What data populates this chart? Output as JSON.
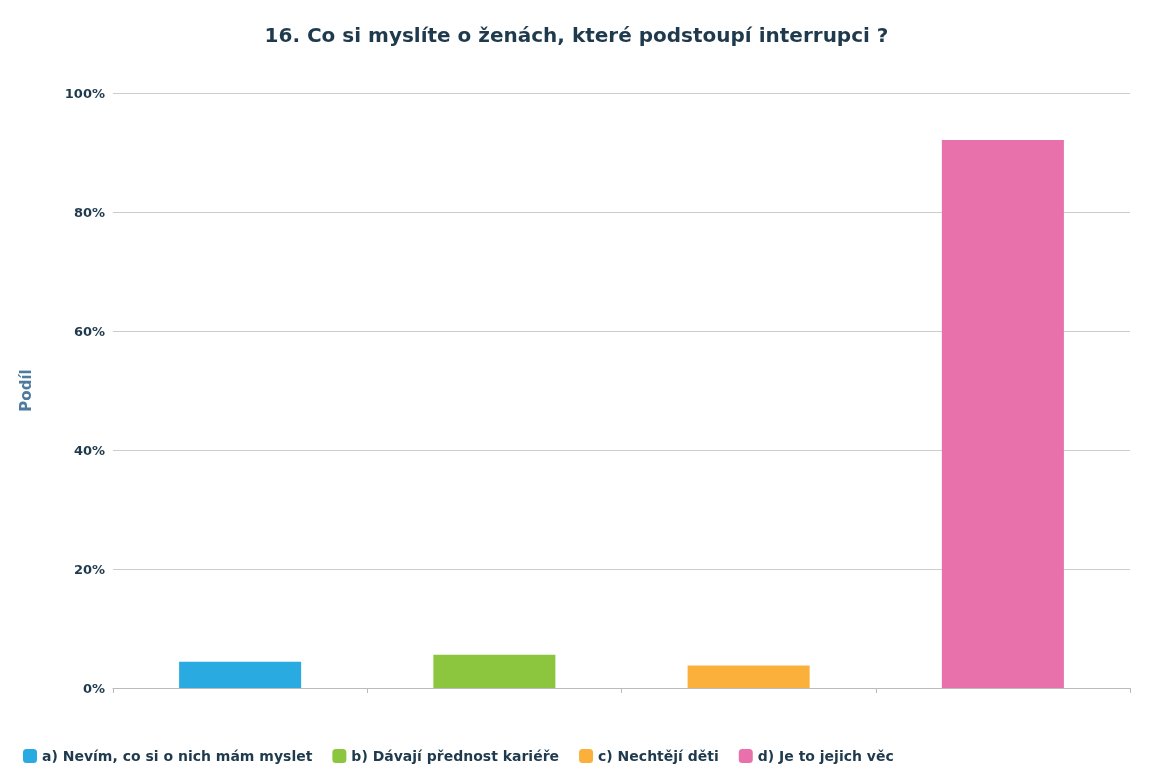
{
  "chart_data": {
    "type": "bar",
    "title": "16. Co si myslíte o ženách, které podstoupí interrupci ?",
    "ylabel": "Podíl",
    "categories": [
      null,
      null,
      null,
      null
    ],
    "series": [
      {
        "name": "a) Nevím, co si o nich mám myslet",
        "color": "#29abe2",
        "values": [
          4.4,
          null,
          null,
          null
        ]
      },
      {
        "name": "b) Dávají přednost kariéře",
        "color": "#8cc63f",
        "values": [
          null,
          5.6,
          null,
          null
        ]
      },
      {
        "name": "c) Nechtějí děti",
        "color": "#fbb03b",
        "values": [
          null,
          null,
          3.8,
          null
        ]
      },
      {
        "name": "d) Je to jejich věc",
        "color": "#e870ab",
        "values": [
          null,
          null,
          null,
          92.1
        ]
      }
    ],
    "ylim": [
      0,
      100
    ],
    "yticks": [
      {
        "value": 0,
        "label": "0%"
      },
      {
        "value": 20,
        "label": "20%"
      },
      {
        "value": 40,
        "label": "40%"
      },
      {
        "value": 60,
        "label": "60%"
      },
      {
        "value": 80,
        "label": "80%"
      },
      {
        "value": 100,
        "label": "100%"
      }
    ],
    "grid": "y",
    "legend": "bottom"
  }
}
